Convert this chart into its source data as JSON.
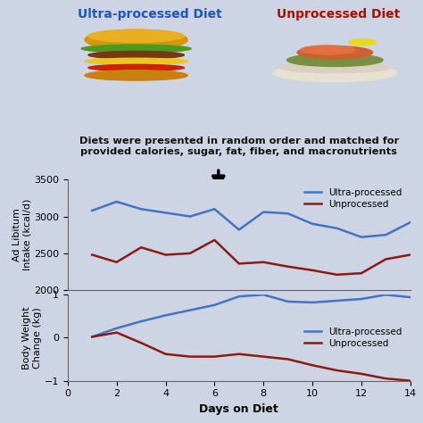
{
  "bg_color": "#cdd4e4",
  "title_left": "Ultra-processed Diet",
  "title_right": "Unprocessed Diet",
  "title_left_color": "#2255bb",
  "title_right_color": "#aa1100",
  "subtitle": "Diets were presented in random order and matched for\nprovided calories, sugar, fat, fiber, and macronutrients",
  "subtitle_color": "#111111",
  "ultra_color": "#4472c4",
  "unprocessed_color": "#8b1a10",
  "intake_days": [
    1,
    2,
    3,
    4,
    5,
    6,
    7,
    8,
    9,
    10,
    11,
    12,
    13,
    14
  ],
  "intake_ultra": [
    3080,
    3200,
    3100,
    3050,
    3000,
    3100,
    2820,
    3060,
    3040,
    2900,
    2840,
    2720,
    2750,
    2920
  ],
  "intake_unpro": [
    2480,
    2380,
    2580,
    2480,
    2500,
    2680,
    2360,
    2380,
    2320,
    2270,
    2210,
    2230,
    2420,
    2480
  ],
  "weight_days": [
    1,
    2,
    3,
    4,
    5,
    6,
    7,
    8,
    9,
    10,
    11,
    12,
    13,
    14
  ],
  "weight_ultra": [
    0.02,
    0.22,
    0.38,
    0.52,
    0.64,
    0.76,
    0.96,
    1.0,
    0.84,
    0.82,
    0.86,
    0.9,
    1.0,
    0.94
  ],
  "weight_unpro": [
    0.02,
    0.12,
    -0.12,
    -0.38,
    -0.44,
    -0.44,
    -0.38,
    -0.44,
    -0.5,
    -0.64,
    -0.76,
    -0.84,
    -0.95,
    -1.0
  ],
  "intake_ylim": [
    2000,
    3500
  ],
  "intake_yticks": [
    2000,
    2500,
    3000,
    3500
  ],
  "weight_ylim": [
    -1,
    1
  ],
  "weight_yticks": [
    -1,
    0,
    1
  ],
  "xlabel": "Days on Diet",
  "ylabel_top": "Ad Libitum\nIntake (kcal/d)",
  "ylabel_bottom": "Body Weight\nChange (kg)",
  "legend_ultra": "Ultra-processed",
  "legend_unpro": "Unprocessed"
}
